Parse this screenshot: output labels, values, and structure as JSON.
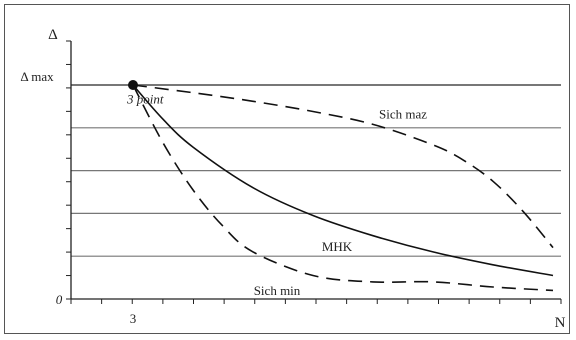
{
  "chart_data": {
    "type": "line",
    "title": "",
    "xlabel": "N",
    "ylabel": "Δ",
    "x_ticks": [
      "3"
    ],
    "y_ticks": [
      "0",
      "Δ max"
    ],
    "xlim": [
      0,
      10
    ],
    "ylim": [
      0,
      5
    ],
    "grid": true,
    "grid_lines_y": [
      1,
      2,
      3,
      4,
      5
    ],
    "start_point": {
      "x": 1,
      "y": 5,
      "label": "3 point"
    },
    "series": [
      {
        "name": "Sich maz",
        "style": "dashed",
        "x": [
          1,
          2,
          3,
          4,
          5,
          6,
          6.5,
          7,
          7.5,
          8
        ],
        "y": [
          5,
          4.82,
          4.62,
          4.38,
          4.08,
          3.6,
          3.25,
          2.75,
          2.05,
          1.2
        ]
      },
      {
        "name": "MHK",
        "style": "solid",
        "x": [
          1,
          1.5,
          2,
          3,
          4,
          5,
          6,
          7,
          8
        ],
        "y": [
          5,
          4.2,
          3.55,
          2.6,
          1.95,
          1.48,
          1.1,
          0.8,
          0.55
        ]
      },
      {
        "name": "Sich min",
        "style": "dashed",
        "x": [
          1,
          1.5,
          2,
          2.5,
          3,
          4,
          5,
          6,
          7,
          8
        ],
        "y": [
          5,
          3.65,
          2.55,
          1.7,
          1.1,
          0.55,
          0.4,
          0.4,
          0.28,
          0.2
        ]
      }
    ],
    "annotations": [
      {
        "text": "3 point",
        "x": 1,
        "y": 4.9
      },
      {
        "text": "Sich maz",
        "x": 5.5,
        "y": 4.55
      },
      {
        "text": "MHK",
        "x": 4.4,
        "y": 1.45
      },
      {
        "text": "Sich min",
        "x": 3.4,
        "y": 0.42
      }
    ],
    "colors": {
      "lines": "#111111",
      "grid": "#777777",
      "axis": "#222222"
    }
  }
}
